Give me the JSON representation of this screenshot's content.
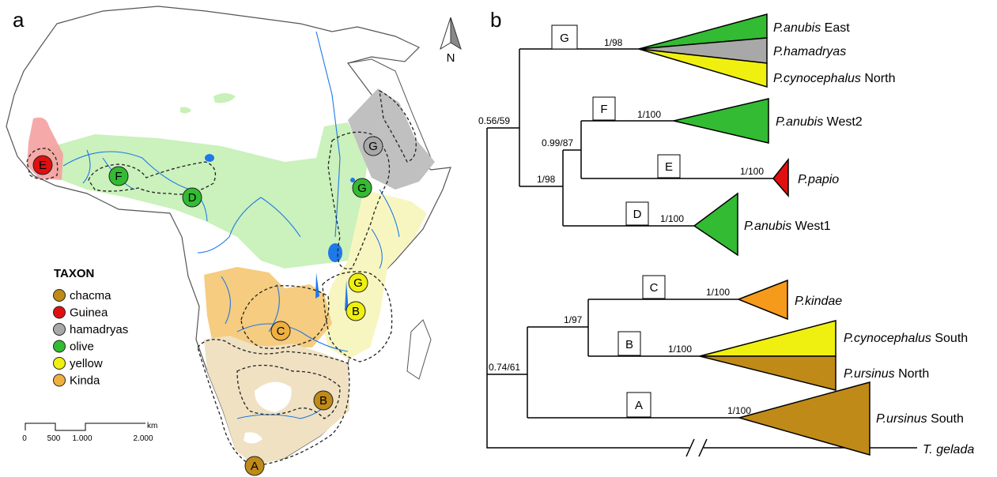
{
  "panels": {
    "a": "a",
    "b": "b"
  },
  "map": {
    "compass": "N",
    "legend": {
      "title": "TAXON",
      "items": [
        {
          "label": "chacma",
          "color": "#c08a18"
        },
        {
          "label": "Guinea",
          "color": "#e01010"
        },
        {
          "label": "hamadryas",
          "color": "#a8a8a8"
        },
        {
          "label": "olive",
          "color": "#33bb33"
        },
        {
          "label": "yellow",
          "color": "#f0f010"
        },
        {
          "label": "Kinda",
          "color": "#f0b040"
        }
      ]
    },
    "scale": {
      "unit": "km",
      "ticks": [
        "0",
        "500",
        "1.000",
        "2.000"
      ]
    },
    "points": [
      {
        "letter": "E",
        "taxon": "Guinea"
      },
      {
        "letter": "F",
        "taxon": "olive"
      },
      {
        "letter": "D",
        "taxon": "olive"
      },
      {
        "letter": "G",
        "taxon": "hamadryas"
      },
      {
        "letter": "G",
        "taxon": "olive"
      },
      {
        "letter": "G",
        "taxon": "yellow"
      },
      {
        "letter": "B",
        "taxon": "yellow"
      },
      {
        "letter": "C",
        "taxon": "Kinda"
      },
      {
        "letter": "B",
        "taxon": "chacma"
      },
      {
        "letter": "A",
        "taxon": "chacma"
      }
    ]
  },
  "tree": {
    "nodes": [
      {
        "label": "G",
        "support": "1/98"
      },
      {
        "label": "F",
        "support": "1/100"
      },
      {
        "label": "E",
        "support": "1/100"
      },
      {
        "label": "D",
        "support": "1/100"
      },
      {
        "label": "C",
        "support": "1/100"
      },
      {
        "label": "B",
        "support": "1/100"
      },
      {
        "label": "A",
        "support": "1/100"
      }
    ],
    "internal_supports": [
      "0.56/59",
      "0.99/87",
      "1/98",
      "1/97",
      "0.74/61"
    ],
    "taxa": [
      {
        "name": "P.anubis",
        "suffix": " East",
        "color": "#33bb33"
      },
      {
        "name": "P.hamadryas",
        "suffix": "",
        "color": "#a8a8a8"
      },
      {
        "name": "P.cynocephalus",
        "suffix": " North",
        "color": "#f0f010"
      },
      {
        "name": "P.anubis",
        "suffix": " West2",
        "color": "#33bb33"
      },
      {
        "name": "P.papio",
        "suffix": "",
        "color": "#e01010"
      },
      {
        "name": "P.anubis",
        "suffix": " West1",
        "color": "#33bb33"
      },
      {
        "name": "P.kindae",
        "suffix": "",
        "color": "#f59a1a"
      },
      {
        "name": "P.cynocephalus",
        "suffix": " South",
        "color": "#f0f010"
      },
      {
        "name": "P.ursinus",
        "suffix": " North",
        "color": "#c08a18"
      },
      {
        "name": "P.ursinus",
        "suffix": " South",
        "color": "#c08a18"
      }
    ],
    "outgroup": "T. gelada"
  }
}
